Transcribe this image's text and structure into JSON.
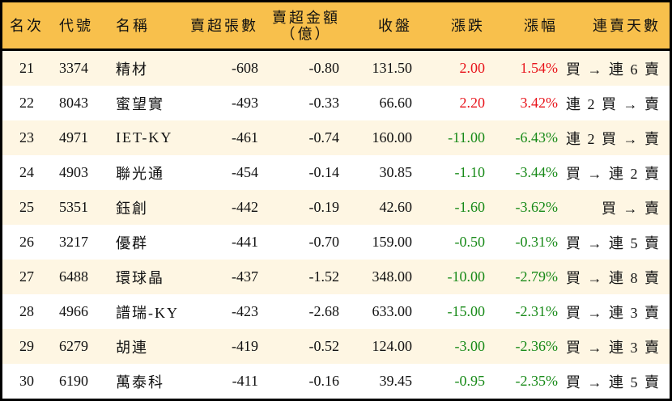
{
  "headers": {
    "rank": "名次",
    "code": "代號",
    "name": "名稱",
    "sell_volume": "賣超張數",
    "sell_amount": "賣超金額",
    "sell_amount_unit": "（億）",
    "close": "收盤",
    "change": "漲跌",
    "change_pct": "漲幅",
    "streak": "連賣天數"
  },
  "colors": {
    "header_bg": "#F8C04C",
    "row_alt": "#FEF6E3",
    "up": "#E8141B",
    "down": "#188A18"
  },
  "rows": [
    {
      "rank": "21",
      "code": "3374",
      "name": "精材",
      "volume": "-608",
      "amount": "-0.80",
      "close": "131.50",
      "change": "2.00",
      "pct": "1.54%",
      "dir": "up",
      "streak": "買 → 連 6 賣"
    },
    {
      "rank": "22",
      "code": "8043",
      "name": "蜜望實",
      "volume": "-493",
      "amount": "-0.33",
      "close": "66.60",
      "change": "2.20",
      "pct": "3.42%",
      "dir": "up",
      "streak": "連 2 買 → 賣"
    },
    {
      "rank": "23",
      "code": "4971",
      "name": "IET-KY",
      "volume": "-461",
      "amount": "-0.74",
      "close": "160.00",
      "change": "-11.00",
      "pct": "-6.43%",
      "dir": "dn",
      "streak": "連 2 買 → 賣"
    },
    {
      "rank": "24",
      "code": "4903",
      "name": "聯光通",
      "volume": "-454",
      "amount": "-0.14",
      "close": "30.85",
      "change": "-1.10",
      "pct": "-3.44%",
      "dir": "dn",
      "streak": "買 → 連 2 賣"
    },
    {
      "rank": "25",
      "code": "5351",
      "name": "鈺創",
      "volume": "-442",
      "amount": "-0.19",
      "close": "42.60",
      "change": "-1.60",
      "pct": "-3.62%",
      "dir": "dn",
      "streak": "買 → 賣"
    },
    {
      "rank": "26",
      "code": "3217",
      "name": "優群",
      "volume": "-441",
      "amount": "-0.70",
      "close": "159.00",
      "change": "-0.50",
      "pct": "-0.31%",
      "dir": "dn",
      "streak": "買 → 連 5 賣"
    },
    {
      "rank": "27",
      "code": "6488",
      "name": "環球晶",
      "volume": "-437",
      "amount": "-1.52",
      "close": "348.00",
      "change": "-10.00",
      "pct": "-2.79%",
      "dir": "dn",
      "streak": "買 → 連 8 賣"
    },
    {
      "rank": "28",
      "code": "4966",
      "name": "譜瑞-KY",
      "volume": "-423",
      "amount": "-2.68",
      "close": "633.00",
      "change": "-15.00",
      "pct": "-2.31%",
      "dir": "dn",
      "streak": "買 → 連 3 賣"
    },
    {
      "rank": "29",
      "code": "6279",
      "name": "胡連",
      "volume": "-419",
      "amount": "-0.52",
      "close": "124.00",
      "change": "-3.00",
      "pct": "-2.36%",
      "dir": "dn",
      "streak": "買 → 連 3 賣"
    },
    {
      "rank": "30",
      "code": "6190",
      "name": "萬泰科",
      "volume": "-411",
      "amount": "-0.16",
      "close": "39.45",
      "change": "-0.95",
      "pct": "-2.35%",
      "dir": "dn",
      "streak": "買 → 連 5 賣"
    }
  ]
}
